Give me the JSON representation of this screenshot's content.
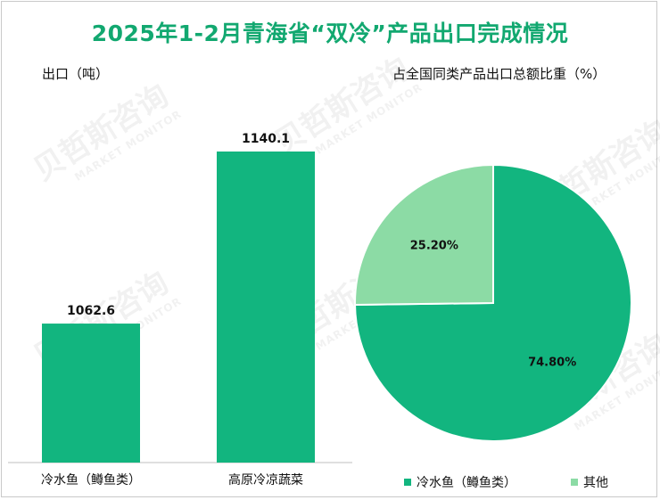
{
  "title": "2025年1-2月青海省“双冷”产品出口完成情况",
  "watermark": {
    "name": "贝哲斯咨询",
    "sub": "MARKET MONITOR"
  },
  "colors": {
    "primary": "#12b57f",
    "secondary": "#8cdba5",
    "title": "#12a870"
  },
  "chart_data": [
    {
      "type": "bar",
      "ylabel": "出口（吨）",
      "categories": [
        "冷水鱼（鳟鱼类）",
        "高原冷凉蔬菜"
      ],
      "values": [
        1062.6,
        1140.1
      ],
      "value_labels": [
        "1062.6",
        "1140.1"
      ],
      "ylim": [
        1000,
        1150
      ],
      "grid": false
    },
    {
      "type": "pie",
      "title": "占全国同类产品出口总额比重（%）",
      "labels": [
        "冷水鱼（鳟鱼类）",
        "其他"
      ],
      "values": [
        74.8,
        25.2
      ],
      "value_labels": [
        "74.80%",
        "25.20%"
      ],
      "legend": "bottom"
    }
  ]
}
